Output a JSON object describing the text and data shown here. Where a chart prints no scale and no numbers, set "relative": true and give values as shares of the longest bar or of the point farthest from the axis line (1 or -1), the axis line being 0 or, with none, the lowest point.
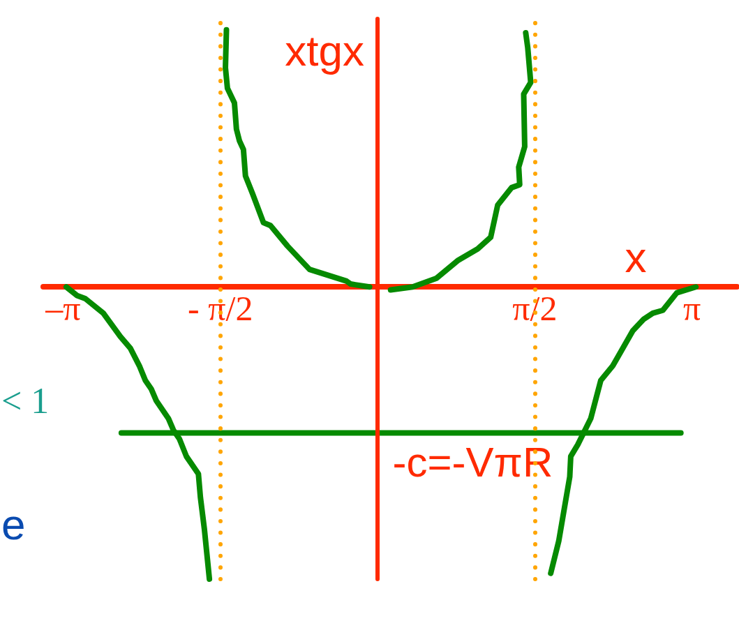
{
  "chart_data": {
    "type": "line",
    "xlabel": "x",
    "ylabel": "xtgx",
    "relative": true,
    "marker": "none",
    "tick_labels": "x",
    "xlim": [
      -3.34,
      3.59
    ],
    "xticks": [
      {
        "value": -3.1416,
        "label": "–π"
      },
      {
        "value": -1.5708,
        "label": "- π/2"
      },
      {
        "value": 1.5708,
        "label": "π/2"
      },
      {
        "value": 3.1416,
        "label": "π"
      }
    ],
    "series": [
      {
        "color": "#068a00",
        "x": [
          -3.11,
          -3.0,
          -2.92,
          -2.74,
          -2.57,
          -2.47,
          -2.38,
          -2.32,
          -2.26,
          -2.21,
          -2.09,
          -2.04,
          -1.98,
          -1.91,
          -1.79,
          -1.77,
          -1.73,
          -1.68
        ],
        "values": [
          0,
          -0.03,
          -0.04,
          -0.09,
          -0.17,
          -0.21,
          -0.27,
          -0.32,
          -0.35,
          -0.39,
          -0.45,
          -0.49,
          -0.52,
          -0.58,
          -0.64,
          -0.72,
          -0.83,
          -1
        ]
      },
      {
        "color": "#068a00",
        "x": [
          -1.51,
          -1.52,
          -1.5,
          -1.43,
          -1.41,
          -1.38,
          -1.34,
          -1.32,
          -1.25,
          -1.14,
          -1.07,
          -0.9,
          -0.68,
          -0.31,
          -0.27,
          -0.08
        ],
        "values": [
          0.88,
          0.75,
          0.68,
          0.63,
          0.54,
          0.5,
          0.47,
          0.38,
          0.32,
          0.22,
          0.21,
          0.14,
          0.06,
          0.02,
          0.01,
          0
        ]
      },
      {
        "color": "#068a00",
        "x": [
          0.13,
          0.35,
          0.59,
          0.8,
          1.0,
          1.13,
          1.2,
          1.34,
          1.42,
          1.41,
          1.47,
          1.46,
          1.53,
          1.5,
          1.48
        ],
        "values": [
          -0.01,
          0,
          0.03,
          0.09,
          0.13,
          0.17,
          0.28,
          0.34,
          0.35,
          0.41,
          0.48,
          0.66,
          0.7,
          0.82,
          0.87
        ]
      },
      {
        "color": "#068a00",
        "x": [
          3.18,
          2.99,
          2.85,
          2.75,
          2.66,
          2.55,
          2.35,
          2.23,
          2.13,
          2.0,
          1.93,
          1.92,
          1.86,
          1.81,
          1.73
        ],
        "values": [
          0,
          -0.02,
          -0.08,
          -0.09,
          -0.11,
          -0.15,
          -0.27,
          -0.32,
          -0.45,
          -0.54,
          -0.58,
          -0.65,
          -0.77,
          -0.87,
          -0.98
        ]
      },
      {
        "color": "#068a00",
        "x": [
          -2.56,
          3.03
        ],
        "values": [
          -0.5,
          -0.5
        ]
      }
    ],
    "ref_lines": [
      {
        "axis": "x",
        "value": 0,
        "color": "#ff2a00",
        "line_style": "solid"
      },
      {
        "axis": "x",
        "value": -1.5708,
        "color": "#ffa500",
        "line_style": "dotted"
      },
      {
        "axis": "x",
        "value": 1.5708,
        "color": "#ffa500",
        "line_style": "dotted"
      }
    ],
    "annotations": [
      "< 1",
      {
        "text": "-c=-VπR",
        "x": 0.15,
        "y": -0.5
      },
      "e"
    ]
  }
}
